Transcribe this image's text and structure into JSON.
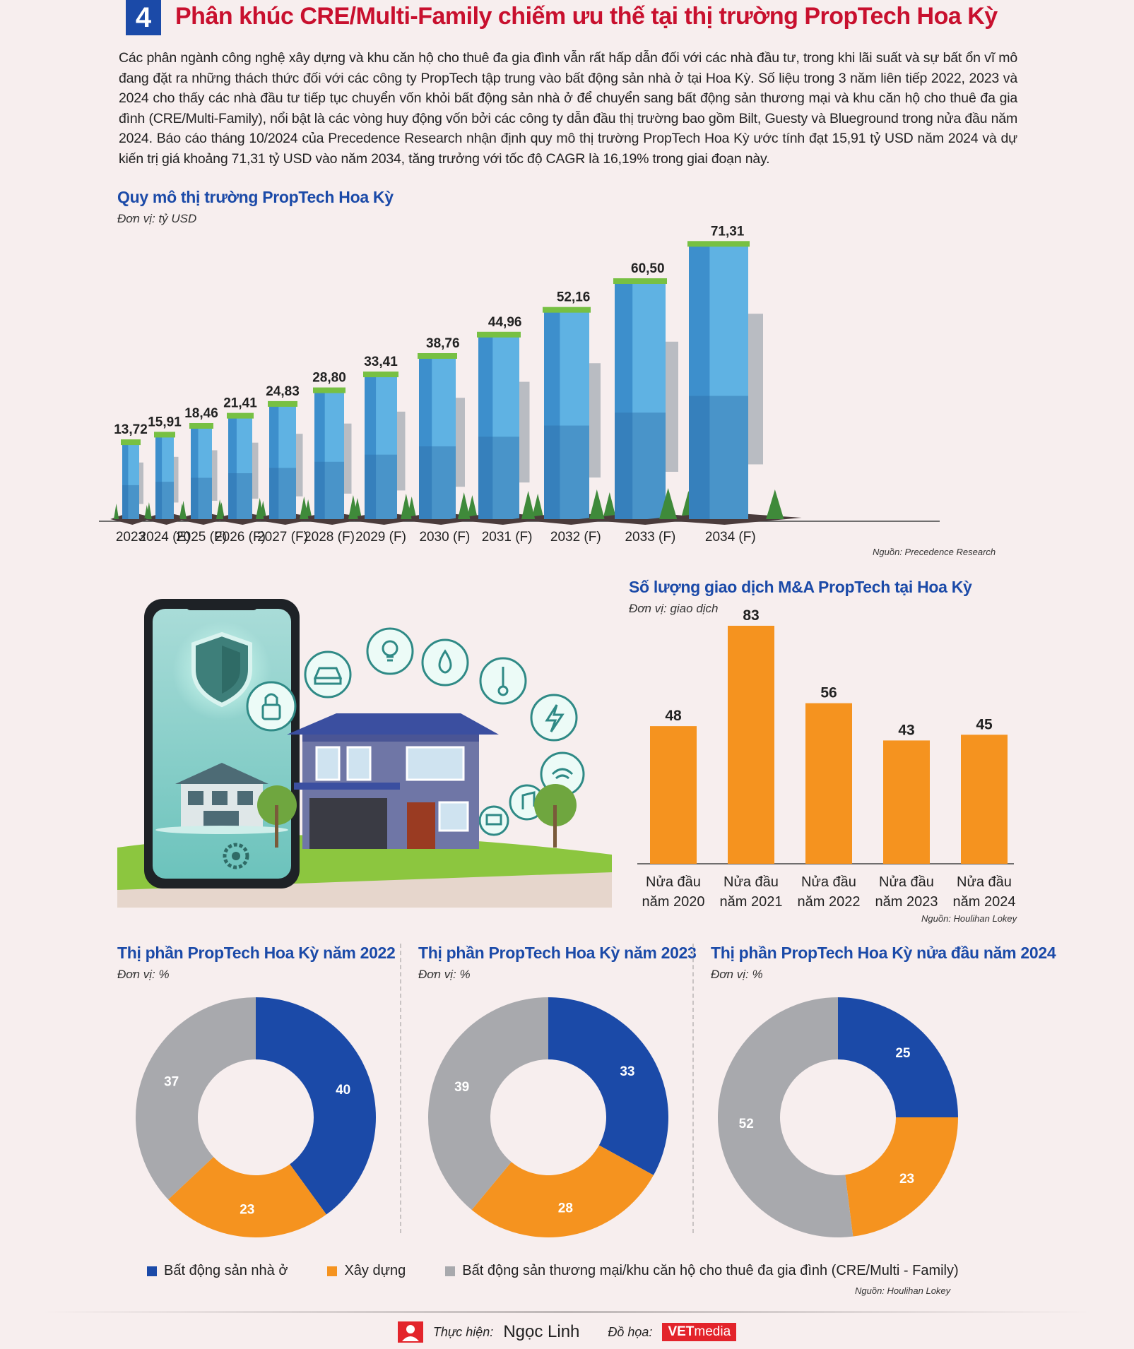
{
  "header": {
    "section_number": "4",
    "title": "Phân khúc CRE/Multi-Family chiếm ưu thế tại thị trường PropTech Hoa Kỳ"
  },
  "intro": "Các phân ngành công nghệ xây dựng và khu căn hộ cho thuê đa gia đình vẫn rất hấp dẫn đối với các nhà đầu tư, trong khi lãi suất và sự bất ổn vĩ mô đang đặt ra những thách thức đối với các công ty PropTech tập trung vào bất động sản nhà ở tại Hoa Kỳ. Số liệu trong 3 năm liên tiếp 2022, 2023 và 2024 cho thấy các nhà đầu tư tiếp tục chuyển vốn khỏi bất động sản nhà ở để chuyển sang bất động sản thương mại và khu căn hộ cho thuê đa gia đình (CRE/Multi-Family), nổi bật là các vòng huy động vốn bởi các công ty dẫn đầu thị trường bao gồm Bilt, Guesty và Blueground trong nửa đầu năm 2024. Báo cáo tháng 10/2024 của Precedence Research nhận định quy mô thị trường PropTech Hoa Kỳ ước tính đạt 15,91 tỷ USD năm 2024 và dự kiến trị giá khoảng 71,31 tỷ USD vào năm 2034, tăng trưởng với tốc độ CAGR là 16,19% trong giai đoạn này.",
  "colors": {
    "blue": "#1b4aa8",
    "orange": "#f5931f",
    "gray": "#a8a9ad",
    "red": "#c8102e"
  },
  "chart_data": [
    {
      "type": "bar",
      "title": "Quy mô thị trường PropTech Hoa Kỳ",
      "unit": "Đơn vị: tỷ USD",
      "source": "Nguồn: Precedence Research",
      "categories": [
        "2023",
        "2024 (E)",
        "2025 (F)",
        "2026 (F)",
        "2027 (F)",
        "2028 (F)",
        "2029 (F)",
        "2030 (F)",
        "2031 (F)",
        "2032 (F)",
        "2033 (F)",
        "2034 (F)"
      ],
      "values": [
        13.72,
        15.91,
        18.46,
        21.41,
        24.83,
        28.8,
        33.41,
        38.76,
        44.96,
        52.16,
        60.5,
        71.31
      ],
      "labels": [
        "13,72",
        "15,91",
        "18,46",
        "21,41",
        "24,83",
        "28,80",
        "33,41",
        "38,76",
        "44,96",
        "52,16",
        "60,50",
        "71,31"
      ]
    },
    {
      "type": "bar",
      "title": "Số lượng giao dịch M&A PropTech tại Hoa Kỳ",
      "unit": "Đơn vị: giao dịch",
      "source": "Nguồn: Houlihan Lokey",
      "categories": [
        [
          "Nửa đầu",
          "năm 2020"
        ],
        [
          "Nửa đầu",
          "năm 2021"
        ],
        [
          "Nửa đầu",
          "năm 2022"
        ],
        [
          "Nửa đầu",
          "năm 2023"
        ],
        [
          "Nửa đầu",
          "năm 2024"
        ]
      ],
      "values": [
        48,
        83,
        56,
        43,
        45
      ],
      "color": "#f5931f"
    },
    {
      "type": "pie",
      "title": "Thị phần PropTech Hoa Kỳ năm 2022",
      "unit": "Đơn vị: %",
      "slices": [
        {
          "label": "Bất động sản nhà ở",
          "value": 40,
          "color": "#1b4aa8"
        },
        {
          "label": "Xây dựng",
          "value": 23,
          "color": "#f5931f"
        },
        {
          "label": "Bất động sản thương mại/khu căn hộ cho thuê đa gia đình (CRE/Multi - Family)",
          "value": 37,
          "color": "#a8a9ad"
        }
      ]
    },
    {
      "type": "pie",
      "title": "Thị phần PropTech Hoa Kỳ năm 2023",
      "unit": "Đơn vị: %",
      "slices": [
        {
          "label": "Bất động sản nhà ở",
          "value": 33,
          "color": "#1b4aa8"
        },
        {
          "label": "Xây dựng",
          "value": 28,
          "color": "#f5931f"
        },
        {
          "label": "Bất động sản thương mại/khu căn hộ cho thuê đa gia đình (CRE/Multi - Family)",
          "value": 39,
          "color": "#a8a9ad"
        }
      ]
    },
    {
      "type": "pie",
      "title": "Thị phần PropTech Hoa Kỳ nửa đầu năm 2024",
      "unit": "Đơn vị: %",
      "slices": [
        {
          "label": "Bất động sản nhà ở",
          "value": 25,
          "color": "#1b4aa8"
        },
        {
          "label": "Xây dựng",
          "value": 23,
          "color": "#f5931f"
        },
        {
          "label": "Bất động sản thương mại/khu căn hộ cho thuê đa gia đình (CRE/Multi - Family)",
          "value": 52,
          "color": "#a8a9ad"
        }
      ]
    }
  ],
  "legend": [
    {
      "label": "Bất động sản nhà ở",
      "color": "#1b4aa8"
    },
    {
      "label": "Xây dựng",
      "color": "#f5931f"
    },
    {
      "label": "Bất động sản thương mại/khu căn hộ cho thuê đa gia đình (CRE/Multi - Family)",
      "color": "#a8a9ad"
    }
  ],
  "pie_source": "Nguồn: Houlihan Lokey",
  "footer": {
    "author_label": "Thực hiện:",
    "author": "Ngọc Linh",
    "graphics_label": "Đồ họa:",
    "brand_vet": "VET",
    "brand_media": "media"
  },
  "illustration_icons": [
    "smartphone-icon",
    "shield-icon",
    "padlock-icon",
    "car-icon",
    "light-bulb-icon",
    "water-drop-icon",
    "thermometer-icon",
    "lightning-icon",
    "wifi-icon",
    "music-note-icon",
    "computer-icon",
    "gear-icon",
    "house-icon"
  ]
}
